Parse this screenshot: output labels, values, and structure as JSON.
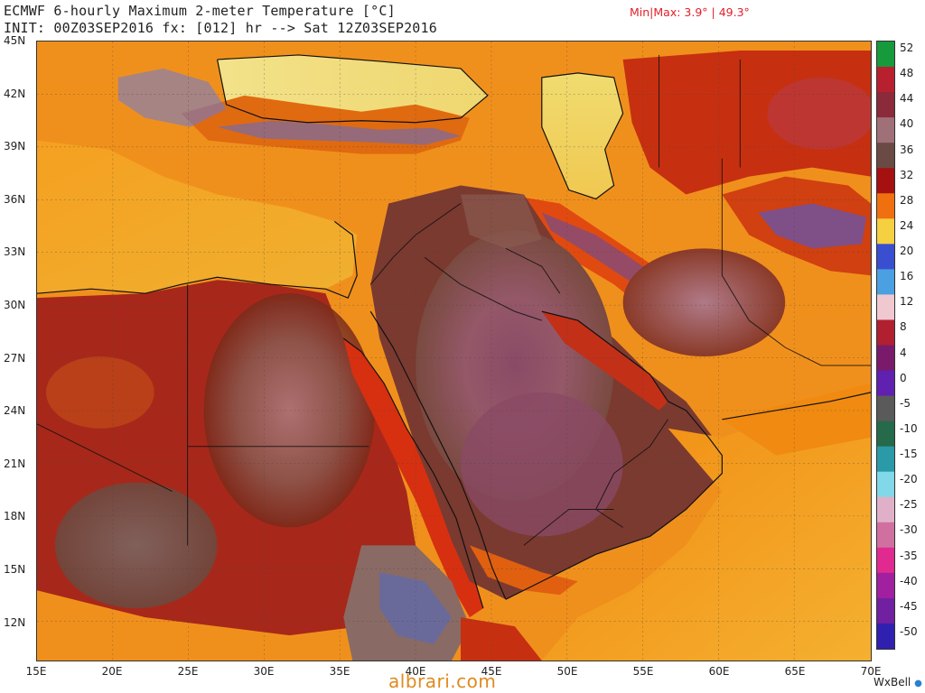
{
  "header": {
    "title_line1": "ECMWF 6-hourly Maximum 2-meter Temperature [°C]",
    "title_line2": "INIT: 00Z03SEP2016 fx: [012] hr --> Sat 12Z03SEP2016",
    "minmax": "Min|Max: 3.9° | 49.3°"
  },
  "axes": {
    "lat_labels": [
      "45N",
      "42N",
      "39N",
      "36N",
      "33N",
      "30N",
      "27N",
      "24N",
      "21N",
      "18N",
      "15N",
      "12N"
    ],
    "lon_labels": [
      "15E",
      "20E",
      "25E",
      "30E",
      "35E",
      "40E",
      "45E",
      "50E",
      "55E",
      "60E",
      "65E",
      "70E"
    ]
  },
  "colorbar": {
    "labels": [
      "52",
      "48",
      "44",
      "40",
      "36",
      "32",
      "28",
      "24",
      "20",
      "16",
      "12",
      "8",
      "4",
      "0",
      "-5",
      "-10",
      "-15",
      "-20",
      "-25",
      "-30",
      "-35",
      "-40",
      "-45",
      "-50"
    ],
    "colors": [
      "#169a3c",
      "#b8202f",
      "#8a2a3a",
      "#a07078",
      "#6a4a44",
      "#a51010",
      "#f07010",
      "#f5d040",
      "#3a4ed0",
      "#4aa0e0",
      "#f0c8d0",
      "#b02030",
      "#7a1a6a",
      "#6020b0",
      "#5a5a5a",
      "#256a4a",
      "#2a9aa8",
      "#80d8e8",
      "#e0b0c8",
      "#d070a0",
      "#e02a90",
      "#a020a0",
      "#7020a0",
      "#3020b0"
    ]
  },
  "branding": {
    "wxbell": "WxBell",
    "watermark": "albrari.com"
  }
}
